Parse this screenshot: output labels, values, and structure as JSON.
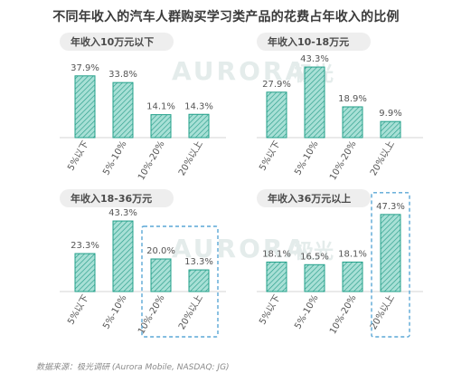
{
  "title": "不同年收入的汽车人群购买学习类产品的花费占年收入的比例",
  "source": "数据来源：极光调研 (Aurora Mobile, NASDAQ: JG)",
  "watermark": {
    "latin": "AURORA",
    "cn": "极光"
  },
  "colors": {
    "bar_fill": "#9fdcd1",
    "bar_hatch": "#2a9d8a",
    "bar_stroke": "#22a08a",
    "panel_title_bg": "#eeeeee",
    "text": "#555555",
    "highlight_dash": "#5aa7d6"
  },
  "chart_data": [
    {
      "type": "bar",
      "title": "年收入10万元以下",
      "categories": [
        "5%以下",
        "5%-10%",
        "10%-20%",
        "20%以上"
      ],
      "values": [
        37.9,
        33.8,
        14.1,
        14.3
      ],
      "labels": [
        "37.9%",
        "33.8%",
        "14.1%",
        "14.3%"
      ],
      "highlight": [],
      "ylim": [
        0,
        50
      ],
      "grid": false
    },
    {
      "type": "bar",
      "title": "年收入10-18万元",
      "categories": [
        "5%以下",
        "5%-10%",
        "10%-20%",
        "20%以上"
      ],
      "values": [
        27.9,
        43.3,
        18.9,
        9.9
      ],
      "labels": [
        "27.9%",
        "43.3%",
        "18.9%",
        "9.9%"
      ],
      "highlight": [],
      "ylim": [
        0,
        50
      ],
      "grid": false
    },
    {
      "type": "bar",
      "title": "年收入18-36万元",
      "categories": [
        "5%以下",
        "5%-10%",
        "10%-20%",
        "20%以上"
      ],
      "values": [
        23.3,
        43.3,
        20.0,
        13.3
      ],
      "labels": [
        "23.3%",
        "43.3%",
        "20.0%",
        "13.3%"
      ],
      "highlight": [
        2,
        3
      ],
      "ylim": [
        0,
        50
      ],
      "grid": false
    },
    {
      "type": "bar",
      "title": "年收入36万元以上",
      "categories": [
        "5%以下",
        "5%-10%",
        "10%-20%",
        "20%以上"
      ],
      "values": [
        18.1,
        16.5,
        18.1,
        47.3
      ],
      "labels": [
        "18.1%",
        "16.5%",
        "18.1%",
        "47.3%"
      ],
      "highlight": [
        3
      ],
      "ylim": [
        0,
        50
      ],
      "grid": false
    }
  ]
}
